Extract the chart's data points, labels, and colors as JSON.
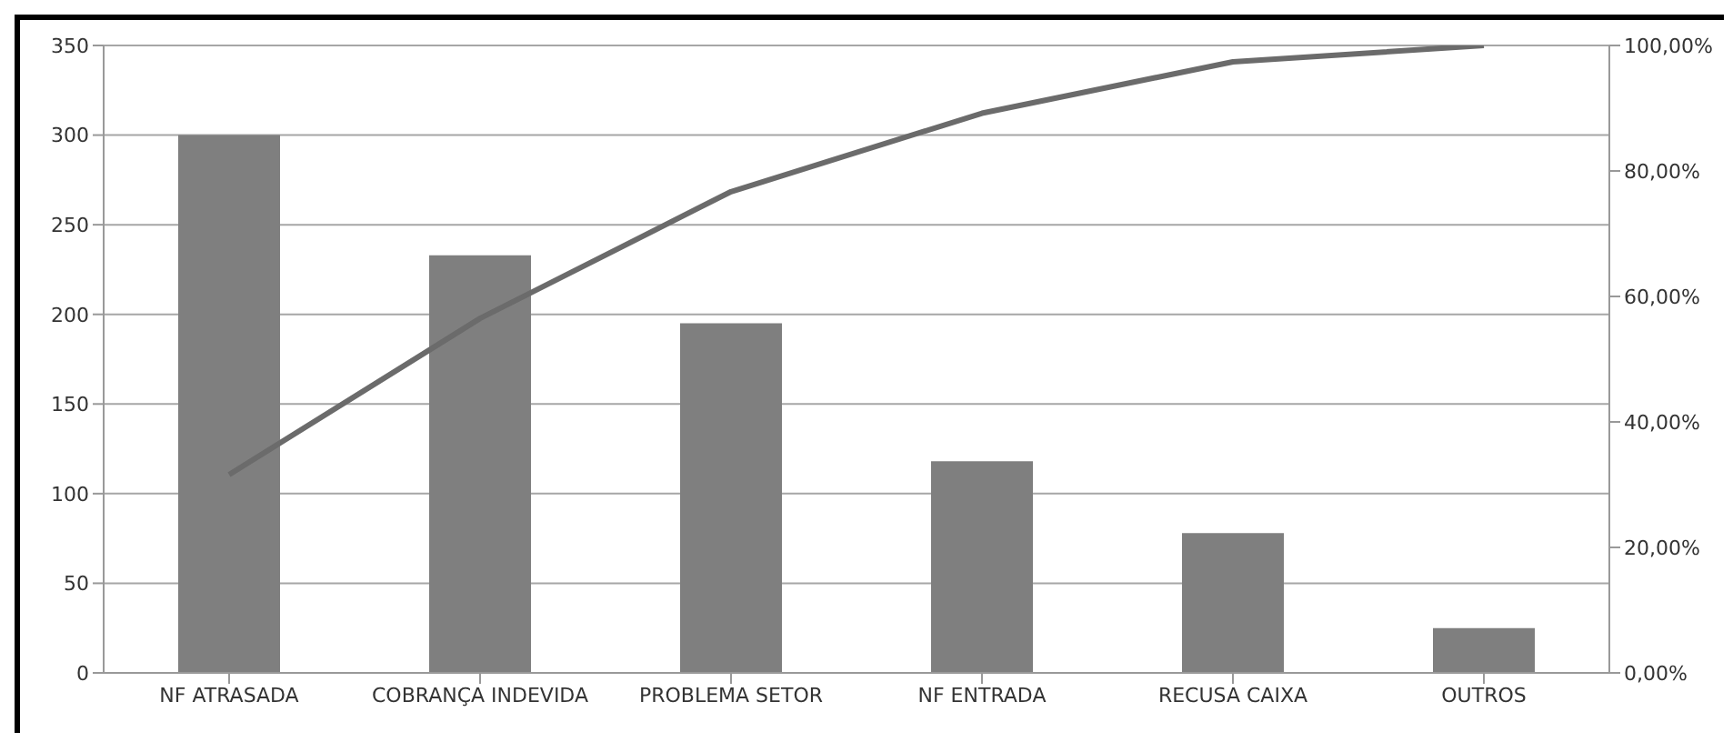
{
  "chart_data": {
    "type": "bar",
    "categories": [
      "NF ATRASADA",
      "COBRANÇA INDEVIDA",
      "PROBLEMA SETOR",
      "NF ENTRADA",
      "RECUSA CAIXA",
      "OUTROS"
    ],
    "series": [
      {
        "color": "#7f7f7f",
        "values": [
          300,
          233,
          195,
          118,
          78,
          25
        ]
      },
      {
        "type": "line",
        "axis": "y2",
        "color": "#6b6b6b",
        "values": [
          31.6,
          56.5,
          76.7,
          89.2,
          97.4,
          100
        ]
      }
    ],
    "ylim": [
      0,
      350
    ],
    "yticks": [
      0,
      50,
      100,
      150,
      200,
      250,
      300,
      350
    ],
    "y2lim": [
      0,
      100
    ],
    "y2ticks": [
      {
        "value": 0,
        "label": "0,00%"
      },
      {
        "value": 20,
        "label": "20,00%"
      },
      {
        "value": 40,
        "label": "40,00%"
      },
      {
        "value": 60,
        "label": "60,00%"
      },
      {
        "value": 80,
        "label": "80,00%"
      },
      {
        "value": 100,
        "label": "100,00%"
      }
    ],
    "grid": "y",
    "marker": "none",
    "line_style": "solid"
  }
}
